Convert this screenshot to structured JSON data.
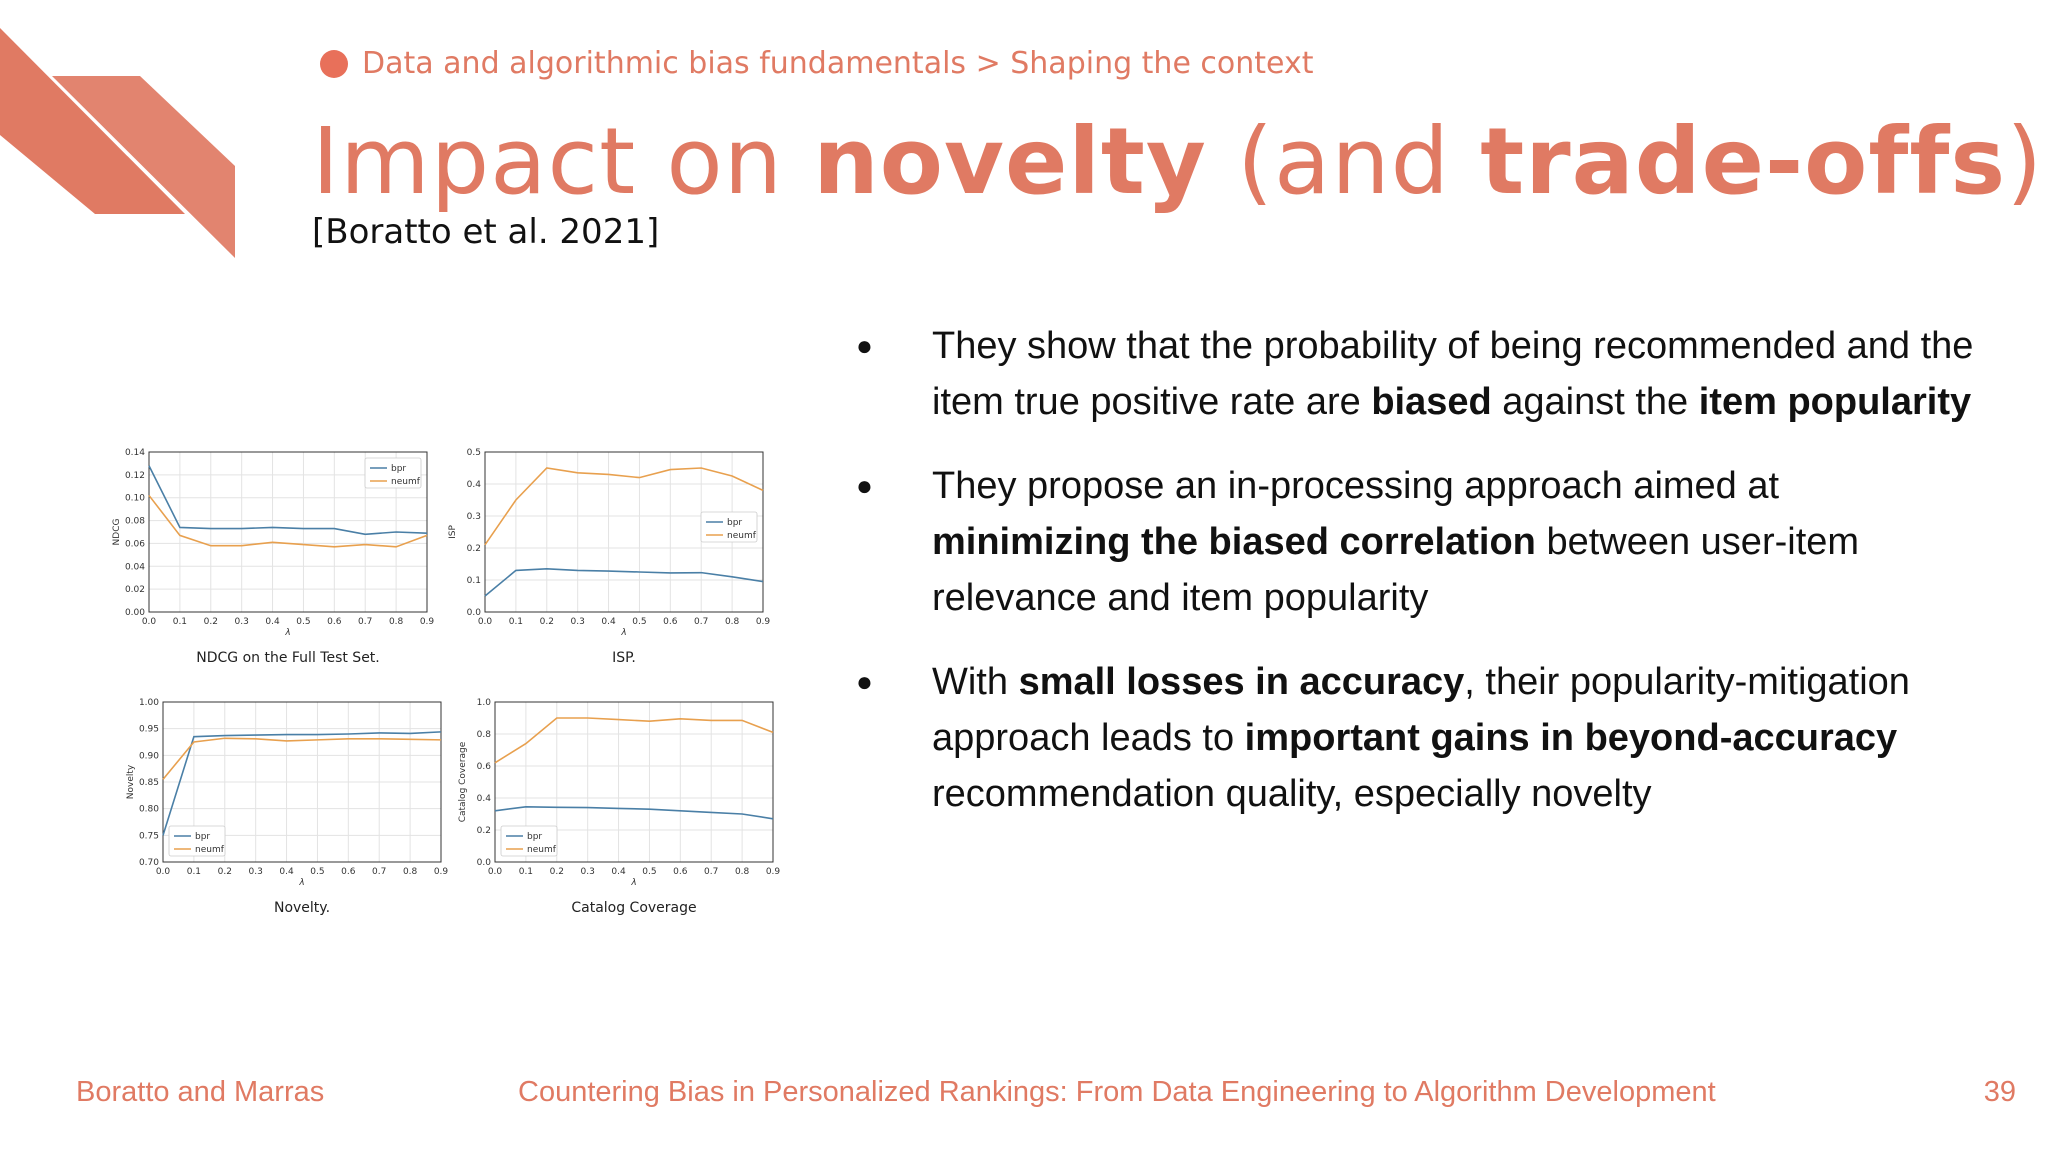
{
  "header": {
    "breadcrumb": "Data and algorithmic bias fundamentals > Shaping the context",
    "title_parts": [
      "Impact on ",
      "novelty",
      " (and ",
      "trade-offs",
      ")"
    ],
    "citation": "[Boratto et al. 2021]"
  },
  "bullets": [
    [
      {
        "t": "They show that the probability of being recommended and the item true positive rate are ",
        "b": false
      },
      {
        "t": "biased",
        "b": true
      },
      {
        "t": " against the ",
        "b": false
      },
      {
        "t": "item popularity",
        "b": true
      }
    ],
    [
      {
        "t": "They propose an in-processing approach aimed at ",
        "b": false
      },
      {
        "t": "minimizing the biased correlation",
        "b": true
      },
      {
        "t": " between user-item relevance and item popularity",
        "b": false
      }
    ],
    [
      {
        "t": "With ",
        "b": false
      },
      {
        "t": "small losses in accuracy",
        "b": true
      },
      {
        "t": ", their popularity-mitigation approach leads to ",
        "b": false
      },
      {
        "t": "important gains in beyond-accuracy",
        "b": true
      },
      {
        "t": " recommendation quality, especially novelty",
        "b": false
      }
    ]
  ],
  "footer": {
    "left": "Boratto and Marras",
    "center": "Countering Bias in Personalized Rankings: From Data Engineering to Algorithm Development",
    "page": "39"
  },
  "colors": {
    "accent": "#e07a63",
    "bpr": "#4a7fa6",
    "neumf": "#e8a04e"
  },
  "chart_data": [
    {
      "type": "line",
      "title": "NDCG on the Full Test Set.",
      "xlabel": "λ",
      "ylabel": "NDCG",
      "x": [
        0.0,
        0.1,
        0.2,
        0.3,
        0.4,
        0.5,
        0.6,
        0.7,
        0.8,
        0.9
      ],
      "xticks": [
        "0.0",
        "0.1",
        "0.2",
        "0.3",
        "0.4",
        "0.5",
        "0.6",
        "0.7",
        "0.8",
        "0.9"
      ],
      "ylim": [
        0,
        0.14
      ],
      "yticks": [
        "0.00",
        "0.02",
        "0.04",
        "0.06",
        "0.08",
        "0.10",
        "0.12",
        "0.14"
      ],
      "legend": "top-right",
      "series": [
        {
          "name": "bpr",
          "values": [
            0.128,
            0.074,
            0.073,
            0.073,
            0.074,
            0.073,
            0.073,
            0.068,
            0.07,
            0.069
          ]
        },
        {
          "name": "neumf",
          "values": [
            0.102,
            0.067,
            0.058,
            0.058,
            0.061,
            0.059,
            0.057,
            0.059,
            0.057,
            0.067
          ]
        }
      ]
    },
    {
      "type": "line",
      "title": "ISP.",
      "xlabel": "λ",
      "ylabel": "ISP",
      "x": [
        0.0,
        0.1,
        0.2,
        0.3,
        0.4,
        0.5,
        0.6,
        0.7,
        0.8,
        0.9
      ],
      "xticks": [
        "0.0",
        "0.1",
        "0.2",
        "0.3",
        "0.4",
        "0.5",
        "0.6",
        "0.7",
        "0.8",
        "0.9"
      ],
      "ylim": [
        0,
        0.5
      ],
      "yticks": [
        "0.0",
        "0.1",
        "0.2",
        "0.3",
        "0.4",
        "0.5"
      ],
      "legend": "center-right",
      "series": [
        {
          "name": "bpr",
          "values": [
            0.05,
            0.13,
            0.135,
            0.13,
            0.128,
            0.125,
            0.122,
            0.123,
            0.11,
            0.095
          ]
        },
        {
          "name": "neumf",
          "values": [
            0.21,
            0.35,
            0.45,
            0.435,
            0.43,
            0.42,
            0.445,
            0.45,
            0.425,
            0.38
          ]
        }
      ]
    },
    {
      "type": "line",
      "title": "Novelty.",
      "xlabel": "λ",
      "ylabel": "Novelty",
      "x": [
        0.0,
        0.1,
        0.2,
        0.3,
        0.4,
        0.5,
        0.6,
        0.7,
        0.8,
        0.9
      ],
      "xticks": [
        "0.0",
        "0.1",
        "0.2",
        "0.3",
        "0.4",
        "0.5",
        "0.6",
        "0.7",
        "0.8",
        "0.9"
      ],
      "ylim": [
        0.7,
        1.0
      ],
      "yticks": [
        "0.70",
        "0.75",
        "0.80",
        "0.85",
        "0.90",
        "0.95",
        "1.00"
      ],
      "legend": "bottom-left",
      "series": [
        {
          "name": "bpr",
          "values": [
            0.75,
            0.935,
            0.937,
            0.938,
            0.939,
            0.939,
            0.94,
            0.942,
            0.941,
            0.944
          ]
        },
        {
          "name": "neumf",
          "values": [
            0.855,
            0.925,
            0.932,
            0.931,
            0.927,
            0.929,
            0.931,
            0.931,
            0.93,
            0.929
          ]
        }
      ]
    },
    {
      "type": "line",
      "title": "Catalog Coverage",
      "xlabel": "λ",
      "ylabel": "Catalog Coverage",
      "x": [
        0.0,
        0.1,
        0.2,
        0.3,
        0.4,
        0.5,
        0.6,
        0.7,
        0.8,
        0.9
      ],
      "xticks": [
        "0.0",
        "0.1",
        "0.2",
        "0.3",
        "0.4",
        "0.5",
        "0.6",
        "0.7",
        "0.8",
        "0.9"
      ],
      "ylim": [
        0,
        1.0
      ],
      "yticks": [
        "0.0",
        "0.2",
        "0.4",
        "0.6",
        "0.8",
        "1.0"
      ],
      "legend": "bottom-left",
      "series": [
        {
          "name": "bpr",
          "values": [
            0.32,
            0.345,
            0.342,
            0.34,
            0.335,
            0.33,
            0.32,
            0.31,
            0.3,
            0.27
          ]
        },
        {
          "name": "neumf",
          "values": [
            0.62,
            0.74,
            0.9,
            0.9,
            0.89,
            0.88,
            0.895,
            0.885,
            0.885,
            0.81
          ]
        }
      ]
    }
  ]
}
